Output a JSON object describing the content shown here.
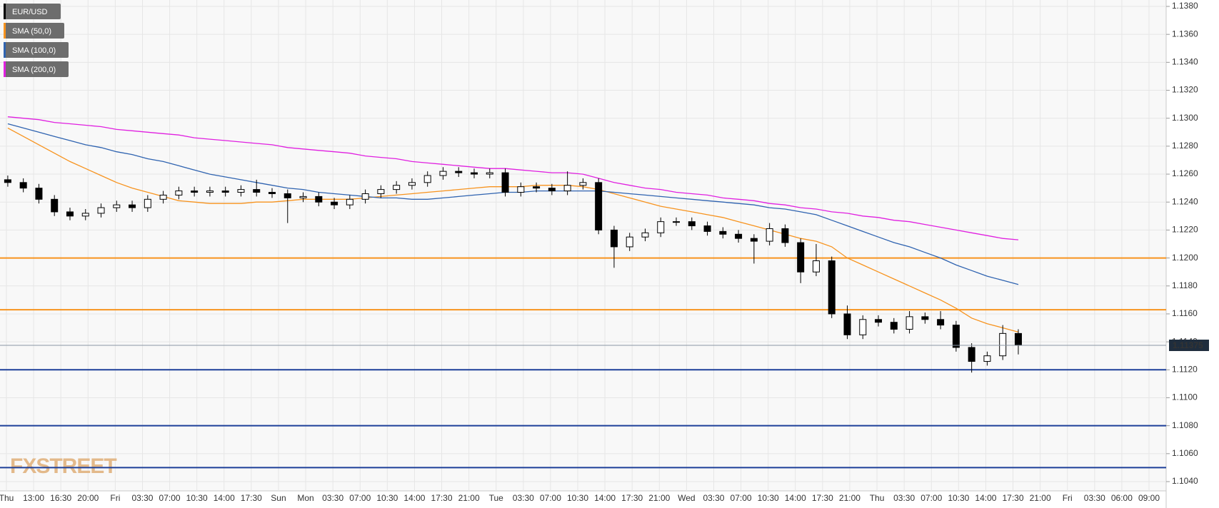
{
  "chart_data": {
    "type": "candlestick",
    "x_labels": [
      "Thu",
      "13:00",
      "16:30",
      "20:00",
      "Fri",
      "03:30",
      "07:00",
      "10:30",
      "14:00",
      "17:30",
      "Sun",
      "Mon",
      "03:30",
      "07:00",
      "10:30",
      "14:00",
      "17:30",
      "21:00",
      "Tue",
      "03:30",
      "07:00",
      "10:30",
      "14:00",
      "17:30",
      "21:00",
      "Wed",
      "03:30",
      "07:00",
      "10:30",
      "14:00",
      "17:30",
      "21:00",
      "Thu",
      "03:30",
      "07:00",
      "10:30",
      "14:00",
      "17:30",
      "21:00",
      "Fri",
      "03:30",
      "06:00",
      "09:00"
    ],
    "ylim": [
      1.104,
      1.138
    ],
    "yticks": [
      {
        "value": 1.104,
        "label": "1.1040"
      },
      {
        "value": 1.106,
        "label": "1.1060"
      },
      {
        "value": 1.108,
        "label": "1.1080"
      },
      {
        "value": 1.11,
        "label": "1.1100"
      },
      {
        "value": 1.112,
        "label": "1.1120"
      },
      {
        "value": 1.114,
        "label": "1.1140"
      },
      {
        "value": 1.116,
        "label": "1.1160"
      },
      {
        "value": 1.118,
        "label": "1.1180"
      },
      {
        "value": 1.12,
        "label": "1.1200"
      },
      {
        "value": 1.122,
        "label": "1.1220"
      },
      {
        "value": 1.124,
        "label": "1.1240"
      },
      {
        "value": 1.126,
        "label": "1.1260"
      },
      {
        "value": 1.128,
        "label": "1.1280"
      },
      {
        "value": 1.13,
        "label": "1.1300"
      },
      {
        "value": 1.132,
        "label": "1.1320"
      },
      {
        "value": 1.134,
        "label": "1.1340"
      },
      {
        "value": 1.136,
        "label": "1.1360"
      },
      {
        "value": 1.138,
        "label": "1.1380"
      }
    ],
    "grid": true,
    "series": [
      {
        "name": "EUR/USD",
        "color": "#000000",
        "open": [
          1.1256,
          1.1254,
          1.125,
          1.1242,
          1.1233,
          1.123,
          1.1232,
          1.1236,
          1.1238,
          1.1236,
          1.1242,
          1.1245,
          1.1248,
          1.1247,
          1.1248,
          1.1247,
          1.1249,
          1.1247,
          1.1246,
          1.1243,
          1.1244,
          1.124,
          1.1238,
          1.1242,
          1.1246,
          1.1249,
          1.1252,
          1.1254,
          1.1259,
          1.1262,
          1.1261,
          1.126,
          1.1261,
          1.1247,
          1.1251,
          1.125,
          1.1248,
          1.1252,
          1.1254,
          1.122,
          1.1208,
          1.1215,
          1.1218,
          1.1226,
          1.1226,
          1.1223,
          1.1219,
          1.1217,
          1.1214,
          1.1212,
          1.1221,
          1.1211,
          1.119,
          1.1198,
          1.116,
          1.1145,
          1.1156,
          1.1154,
          1.1149,
          1.1158,
          1.1156,
          1.1152,
          1.1136,
          1.1126,
          1.113,
          1.1146
        ],
        "high": [
          1.1259,
          1.1257,
          1.1253,
          1.1245,
          1.1236,
          1.1235,
          1.1239,
          1.1241,
          1.1241,
          1.1245,
          1.1248,
          1.1251,
          1.1251,
          1.1251,
          1.1251,
          1.1252,
          1.1256,
          1.125,
          1.1249,
          1.1247,
          1.1247,
          1.1243,
          1.1245,
          1.1249,
          1.1252,
          1.1255,
          1.1257,
          1.1262,
          1.1265,
          1.1265,
          1.1264,
          1.1264,
          1.1264,
          1.1254,
          1.1254,
          1.1253,
          1.1262,
          1.1257,
          1.1257,
          1.1223,
          1.1218,
          1.1221,
          1.1229,
          1.1229,
          1.1229,
          1.1226,
          1.1222,
          1.122,
          1.1217,
          1.1225,
          1.1224,
          1.1214,
          1.121,
          1.1201,
          1.1166,
          1.1159,
          1.1159,
          1.1157,
          1.1162,
          1.1161,
          1.1162,
          1.1155,
          1.1139,
          1.1133,
          1.1152,
          1.1149
        ],
        "low": [
          1.1251,
          1.1247,
          1.1239,
          1.123,
          1.1227,
          1.1227,
          1.1229,
          1.1233,
          1.1233,
          1.1233,
          1.1239,
          1.1242,
          1.1244,
          1.1244,
          1.1244,
          1.1244,
          1.1244,
          1.1243,
          1.1225,
          1.124,
          1.1237,
          1.1235,
          1.1235,
          1.1239,
          1.1243,
          1.1246,
          1.1249,
          1.1251,
          1.1256,
          1.1258,
          1.1257,
          1.1257,
          1.1244,
          1.1244,
          1.1247,
          1.1245,
          1.1245,
          1.1249,
          1.1217,
          1.1193,
          1.1205,
          1.1212,
          1.1215,
          1.1223,
          1.122,
          1.1216,
          1.1214,
          1.1211,
          1.1196,
          1.1209,
          1.1208,
          1.1182,
          1.1187,
          1.1157,
          1.1142,
          1.1142,
          1.1151,
          1.1146,
          1.1146,
          1.1153,
          1.1149,
          1.1133,
          1.1118,
          1.1123,
          1.1127,
          1.1131
        ],
        "close": [
          1.1254,
          1.125,
          1.1242,
          1.1233,
          1.123,
          1.1232,
          1.1236,
          1.1238,
          1.1236,
          1.1242,
          1.1245,
          1.1248,
          1.1247,
          1.1248,
          1.1247,
          1.1249,
          1.1247,
          1.1246,
          1.1243,
          1.1244,
          1.124,
          1.1238,
          1.1242,
          1.1246,
          1.1249,
          1.1252,
          1.1254,
          1.1259,
          1.1262,
          1.1261,
          1.126,
          1.1261,
          1.1247,
          1.1251,
          1.125,
          1.1248,
          1.1252,
          1.1254,
          1.122,
          1.1208,
          1.1215,
          1.1218,
          1.1226,
          1.1226,
          1.1223,
          1.1219,
          1.1217,
          1.1214,
          1.1212,
          1.1221,
          1.1211,
          1.119,
          1.1198,
          1.116,
          1.1145,
          1.1156,
          1.1154,
          1.1149,
          1.1158,
          1.1156,
          1.1152,
          1.1136,
          1.1126,
          1.113,
          1.1146,
          1.11375
        ]
      },
      {
        "name": "SMA (50,0)",
        "color": "#f7931e",
        "values": [
          1.1293,
          1.1287,
          1.1281,
          1.1275,
          1.1269,
          1.1264,
          1.1259,
          1.1254,
          1.125,
          1.1247,
          1.1244,
          1.1241,
          1.124,
          1.1239,
          1.1239,
          1.1239,
          1.124,
          1.124,
          1.1241,
          1.1242,
          1.1242,
          1.1242,
          1.1242,
          1.1243,
          1.1244,
          1.1245,
          1.1246,
          1.1247,
          1.1248,
          1.1249,
          1.125,
          1.1251,
          1.1251,
          1.1251,
          1.1252,
          1.1252,
          1.1252,
          1.1251,
          1.1249,
          1.1246,
          1.1243,
          1.124,
          1.1237,
          1.1235,
          1.1233,
          1.1231,
          1.1229,
          1.1226,
          1.1223,
          1.122,
          1.1217,
          1.1214,
          1.1212,
          1.1208,
          1.12,
          1.1195,
          1.119,
          1.1185,
          1.118,
          1.1175,
          1.117,
          1.1164,
          1.1157,
          1.1153,
          1.115,
          1.1147
        ]
      },
      {
        "name": "SMA (100,0)",
        "color": "#2f63b0",
        "values": [
          1.1296,
          1.1293,
          1.129,
          1.1287,
          1.1284,
          1.1281,
          1.1279,
          1.1276,
          1.1274,
          1.1271,
          1.1269,
          1.1266,
          1.1263,
          1.126,
          1.1258,
          1.1256,
          1.1254,
          1.1252,
          1.125,
          1.1249,
          1.1247,
          1.1246,
          1.1245,
          1.1244,
          1.1243,
          1.1243,
          1.1242,
          1.1242,
          1.1243,
          1.1244,
          1.1245,
          1.1246,
          1.1247,
          1.1247,
          1.1248,
          1.1248,
          1.1248,
          1.1248,
          1.1248,
          1.1247,
          1.1246,
          1.1245,
          1.1244,
          1.1243,
          1.1242,
          1.1241,
          1.124,
          1.1239,
          1.1238,
          1.1236,
          1.1235,
          1.1233,
          1.1231,
          1.1227,
          1.1223,
          1.1219,
          1.1215,
          1.1211,
          1.1208,
          1.1204,
          1.12,
          1.1195,
          1.1191,
          1.1187,
          1.1184,
          1.1181
        ]
      },
      {
        "name": "SMA (200,0)",
        "color": "#e020e0",
        "values": [
          1.1301,
          1.13,
          1.1299,
          1.1297,
          1.1296,
          1.1295,
          1.1294,
          1.1292,
          1.1291,
          1.129,
          1.1289,
          1.1288,
          1.1286,
          1.1285,
          1.1284,
          1.1283,
          1.1282,
          1.1281,
          1.1279,
          1.1278,
          1.1277,
          1.1276,
          1.1275,
          1.1273,
          1.1272,
          1.1271,
          1.1269,
          1.1268,
          1.1267,
          1.1266,
          1.1265,
          1.1264,
          1.1264,
          1.1263,
          1.1262,
          1.1261,
          1.1261,
          1.126,
          1.1257,
          1.1254,
          1.1252,
          1.125,
          1.1249,
          1.1247,
          1.1246,
          1.1245,
          1.1243,
          1.1242,
          1.1241,
          1.1239,
          1.1238,
          1.1236,
          1.1235,
          1.1233,
          1.1232,
          1.123,
          1.1229,
          1.1227,
          1.1226,
          1.1224,
          1.1222,
          1.122,
          1.1218,
          1.1216,
          1.1214,
          1.1213
        ]
      }
    ],
    "levels": [
      {
        "value": 1.12,
        "color": "#f7931e"
      },
      {
        "value": 1.1163,
        "color": "#f7931e"
      },
      {
        "value": 1.112,
        "color": "#1d3f99"
      },
      {
        "value": 1.108,
        "color": "#1d3f99"
      },
      {
        "value": 1.105,
        "color": "#1d3f99"
      }
    ],
    "last_price": 1.11375,
    "watermark": "FXSTREET"
  }
}
